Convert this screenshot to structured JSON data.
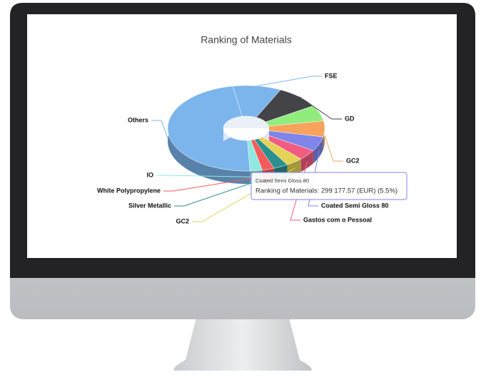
{
  "chart_data": {
    "type": "pie",
    "donut": true,
    "three_d": true,
    "title": "Ranking of Materials",
    "categories": [
      "FSE",
      "GD",
      null,
      "GC2",
      "Coated Semi Gloss 80",
      "Gastos com o Pessoal",
      "GC2",
      "Silver Metallic",
      "White Polypropylene",
      "IO",
      "Others"
    ],
    "values": [
      10,
      9,
      6,
      6,
      5.5,
      4,
      3.5,
      3,
      2.5,
      2.5,
      48
    ],
    "colors": [
      "#7cb5ec",
      "#434348",
      "#90ed7d",
      "#f7a35c",
      "#8085e9",
      "#f15c80",
      "#e4d354",
      "#2b908f",
      "#f45b5b",
      "#91e8e1",
      "#7cb5ec"
    ],
    "tooltip": {
      "title": "Coated Semi Gloss 80",
      "text": "Ranking of Materials: 299 177.57 (EUR) (5.5%)"
    }
  }
}
